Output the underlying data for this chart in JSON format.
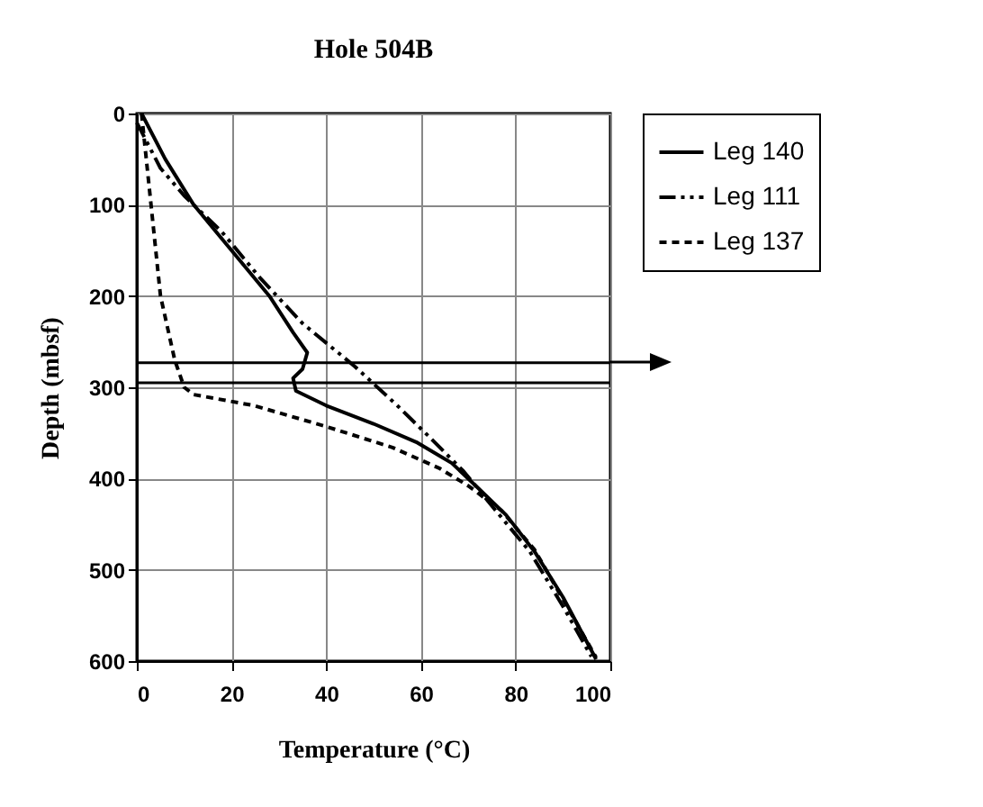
{
  "chart_data": {
    "type": "line",
    "title": "Hole 504B",
    "xlabel": "Temperature (°C)",
    "ylabel": "Depth (mbsf)",
    "xlim": [
      0,
      100
    ],
    "xticks": [
      0,
      20,
      40,
      60,
      80,
      100
    ],
    "ylim": [
      600,
      0
    ],
    "yticks": [
      0,
      100,
      200,
      300,
      400,
      500,
      600
    ],
    "grid": true,
    "legend": "right",
    "series": [
      {
        "name": "Leg 140",
        "color": "#000000",
        "line_style": "solid",
        "x": [
          1,
          6,
          12,
          20,
          28,
          33,
          36,
          35,
          33,
          33.6,
          40,
          50,
          59,
          66.5,
          72,
          78,
          84,
          90,
          97
        ],
        "values": [
          0,
          50,
          100,
          150,
          200,
          240,
          262,
          280,
          290,
          304,
          320,
          340,
          360,
          383,
          410,
          440,
          480,
          530,
          598
        ]
      },
      {
        "name": "Leg 111",
        "color": "#000000",
        "line_style": "dashed",
        "x": [
          0,
          5,
          10,
          18,
          26,
          35,
          46,
          55,
          61.5,
          69,
          75,
          83,
          90,
          96
        ],
        "values": [
          10,
          60,
          90,
          130,
          180,
          230,
          277,
          320,
          353,
          392,
          430,
          480,
          540,
          595
        ]
      },
      {
        "name": "Leg 137",
        "color": "#000000",
        "line_style": "dotted",
        "x": [
          1,
          3,
          5,
          8,
          10,
          12,
          24.7,
          40,
          54,
          64,
          70,
          77,
          84,
          97
        ],
        "values": [
          0,
          100,
          200,
          270,
          300,
          308,
          320,
          343,
          366,
          389,
          408,
          435,
          478,
          596
        ]
      }
    ],
    "ref_lines": [
      {
        "axis": "y",
        "value": 273,
        "color": "#000000"
      },
      {
        "axis": "y",
        "value": 295,
        "color": "#000000"
      }
    ]
  }
}
